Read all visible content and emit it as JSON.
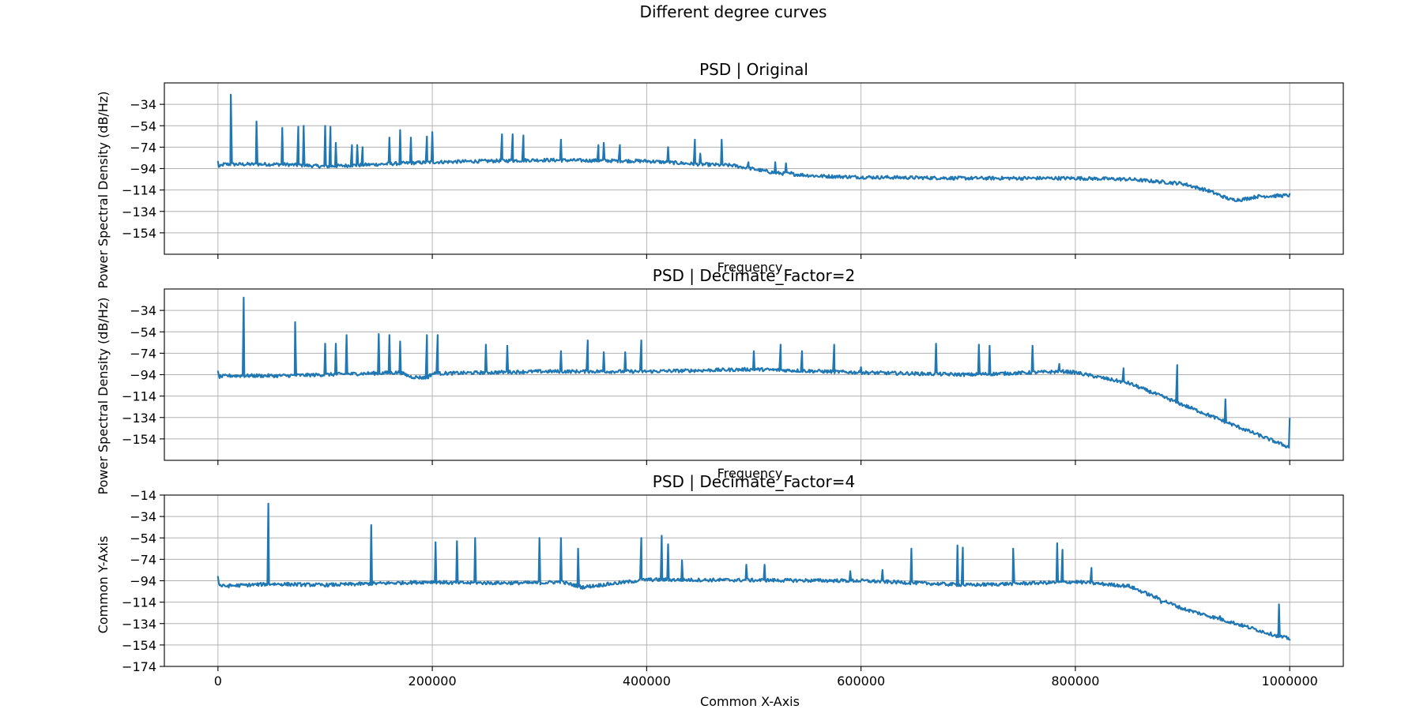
{
  "figure": {
    "title": "Different degree curves",
    "common_xlabel": "Common X-Axis",
    "common_ylabel": "Common Y-Axis"
  },
  "colors": {
    "line": "#1f77b4",
    "grid": "#b0b0b0"
  },
  "chart_data": [
    {
      "type": "line",
      "title": "PSD | Original",
      "xlabel": "Frequency",
      "ylabel": "Power Spectral Density (dB/Hz)",
      "xlim": [
        -50000,
        1050000
      ],
      "ylim": [
        -174,
        -14
      ],
      "xticks": [
        0,
        200000,
        400000,
        600000,
        800000,
        1000000
      ],
      "yticks": [
        -154,
        -134,
        -114,
        -94,
        -74,
        -54,
        -34
      ],
      "show_xticklabels": false,
      "grid": true,
      "series": [
        {
          "baseline": [
            [
              0,
              -88
            ],
            [
              1000,
              -93
            ],
            [
              5000,
              -90
            ],
            [
              20000,
              -90
            ],
            [
              60000,
              -90
            ],
            [
              100000,
              -92
            ],
            [
              200000,
              -88
            ],
            [
              300000,
              -86
            ],
            [
              400000,
              -87
            ],
            [
              450000,
              -90
            ],
            [
              480000,
              -91
            ],
            [
              520000,
              -98
            ],
            [
              560000,
              -101
            ],
            [
              600000,
              -102
            ],
            [
              700000,
              -103
            ],
            [
              800000,
              -103
            ],
            [
              850000,
              -104
            ],
            [
              900000,
              -108
            ],
            [
              925000,
              -115
            ],
            [
              945000,
              -123
            ],
            [
              955000,
              -123
            ],
            [
              970000,
              -120
            ],
            [
              1000000,
              -119
            ]
          ],
          "peaks": [
            [
              12000,
              -25
            ],
            [
              36000,
              -50
            ],
            [
              60000,
              -56
            ],
            [
              75000,
              -55
            ],
            [
              80000,
              -54
            ],
            [
              100000,
              -54
            ],
            [
              105000,
              -55
            ],
            [
              110000,
              -70
            ],
            [
              125000,
              -72
            ],
            [
              130000,
              -72
            ],
            [
              135000,
              -74
            ],
            [
              160000,
              -65
            ],
            [
              170000,
              -58
            ],
            [
              180000,
              -65
            ],
            [
              195000,
              -64
            ],
            [
              200000,
              -60
            ],
            [
              265000,
              -62
            ],
            [
              275000,
              -62
            ],
            [
              285000,
              -63
            ],
            [
              320000,
              -67
            ],
            [
              355000,
              -72
            ],
            [
              360000,
              -70
            ],
            [
              375000,
              -72
            ],
            [
              420000,
              -74
            ],
            [
              445000,
              -67
            ],
            [
              450000,
              -80
            ],
            [
              470000,
              -67
            ],
            [
              495000,
              -88
            ],
            [
              520000,
              -88
            ],
            [
              530000,
              -89
            ],
            [
              535000,
              -97
            ]
          ]
        }
      ]
    },
    {
      "type": "line",
      "title": "PSD | Decimate_Factor=2",
      "xlabel": "Frequency",
      "ylabel": "Power Spectral Density (dB/Hz)",
      "xlim": [
        -50000,
        1050000
      ],
      "ylim": [
        -174,
        -14
      ],
      "xticks": [
        0,
        200000,
        400000,
        600000,
        800000,
        1000000
      ],
      "yticks": [
        -154,
        -134,
        -114,
        -94,
        -74,
        -54,
        -34
      ],
      "show_xticklabels": false,
      "grid": true,
      "series": [
        {
          "baseline": [
            [
              0,
              -92
            ],
            [
              1000,
              -96
            ],
            [
              10000,
              -95
            ],
            [
              60000,
              -95
            ],
            [
              100000,
              -94
            ],
            [
              170000,
              -92
            ],
            [
              180000,
              -96
            ],
            [
              195000,
              -97
            ],
            [
              200000,
              -93
            ],
            [
              300000,
              -91
            ],
            [
              400000,
              -91
            ],
            [
              500000,
              -89
            ],
            [
              600000,
              -92
            ],
            [
              700000,
              -94
            ],
            [
              790000,
              -91
            ],
            [
              800000,
              -92
            ],
            [
              850000,
              -102
            ],
            [
              900000,
              -122
            ],
            [
              950000,
              -142
            ],
            [
              1000000,
              -162
            ]
          ],
          "peaks": [
            [
              24000,
              -22
            ],
            [
              72000,
              -45
            ],
            [
              100000,
              -65
            ],
            [
              110000,
              -65
            ],
            [
              120000,
              -57
            ],
            [
              150000,
              -56
            ],
            [
              160000,
              -57
            ],
            [
              170000,
              -63
            ],
            [
              195000,
              -57
            ],
            [
              205000,
              -57
            ],
            [
              250000,
              -66
            ],
            [
              270000,
              -67
            ],
            [
              320000,
              -72
            ],
            [
              345000,
              -62
            ],
            [
              360000,
              -73
            ],
            [
              380000,
              -73
            ],
            [
              395000,
              -62
            ],
            [
              500000,
              -72
            ],
            [
              525000,
              -66
            ],
            [
              545000,
              -72
            ],
            [
              575000,
              -66
            ],
            [
              600000,
              -87
            ],
            [
              670000,
              -65
            ],
            [
              710000,
              -66
            ],
            [
              720000,
              -67
            ],
            [
              760000,
              -67
            ],
            [
              785000,
              -84
            ],
            [
              845000,
              -88
            ],
            [
              895000,
              -85
            ],
            [
              940000,
              -117
            ],
            [
              1000000,
              -135
            ]
          ]
        }
      ]
    },
    {
      "type": "line",
      "title": "PSD | Decimate_Factor=4",
      "xlabel": "",
      "ylabel": "Common Y-Axis",
      "xlim": [
        -50000,
        1050000
      ],
      "ylim": [
        -174,
        -14
      ],
      "xticks": [
        0,
        200000,
        400000,
        600000,
        800000,
        1000000
      ],
      "yticks": [
        -174,
        -154,
        -134,
        -114,
        -94,
        -74,
        -54,
        -34,
        -14
      ],
      "show_xticklabels": true,
      "grid": true,
      "series": [
        {
          "baseline": [
            [
              0,
              -90
            ],
            [
              1000,
              -98
            ],
            [
              5000,
              -99
            ],
            [
              50000,
              -97
            ],
            [
              100000,
              -98
            ],
            [
              200000,
              -95
            ],
            [
              220000,
              -96
            ],
            [
              300000,
              -96
            ],
            [
              320000,
              -95
            ],
            [
              340000,
              -100
            ],
            [
              400000,
              -93
            ],
            [
              600000,
              -94
            ],
            [
              650000,
              -96
            ],
            [
              700000,
              -98
            ],
            [
              800000,
              -95
            ],
            [
              850000,
              -99
            ],
            [
              900000,
              -120
            ],
            [
              950000,
              -134
            ],
            [
              990000,
              -146
            ],
            [
              1000000,
              -148
            ]
          ],
          "peaks": [
            [
              47000,
              -22
            ],
            [
              143000,
              -42
            ],
            [
              203000,
              -58
            ],
            [
              223000,
              -57
            ],
            [
              240000,
              -54
            ],
            [
              300000,
              -54
            ],
            [
              320000,
              -54
            ],
            [
              336000,
              -64
            ],
            [
              395000,
              -54
            ],
            [
              414000,
              -52
            ],
            [
              420000,
              -60
            ],
            [
              433000,
              -75
            ],
            [
              493000,
              -79
            ],
            [
              510000,
              -79
            ],
            [
              590000,
              -85
            ],
            [
              620000,
              -84
            ],
            [
              647000,
              -64
            ],
            [
              690000,
              -61
            ],
            [
              695000,
              -63
            ],
            [
              742000,
              -64
            ],
            [
              783000,
              -59
            ],
            [
              788000,
              -65
            ],
            [
              815000,
              -82
            ],
            [
              880000,
              -115
            ],
            [
              935000,
              -127
            ],
            [
              990000,
              -116
            ]
          ]
        }
      ]
    }
  ]
}
